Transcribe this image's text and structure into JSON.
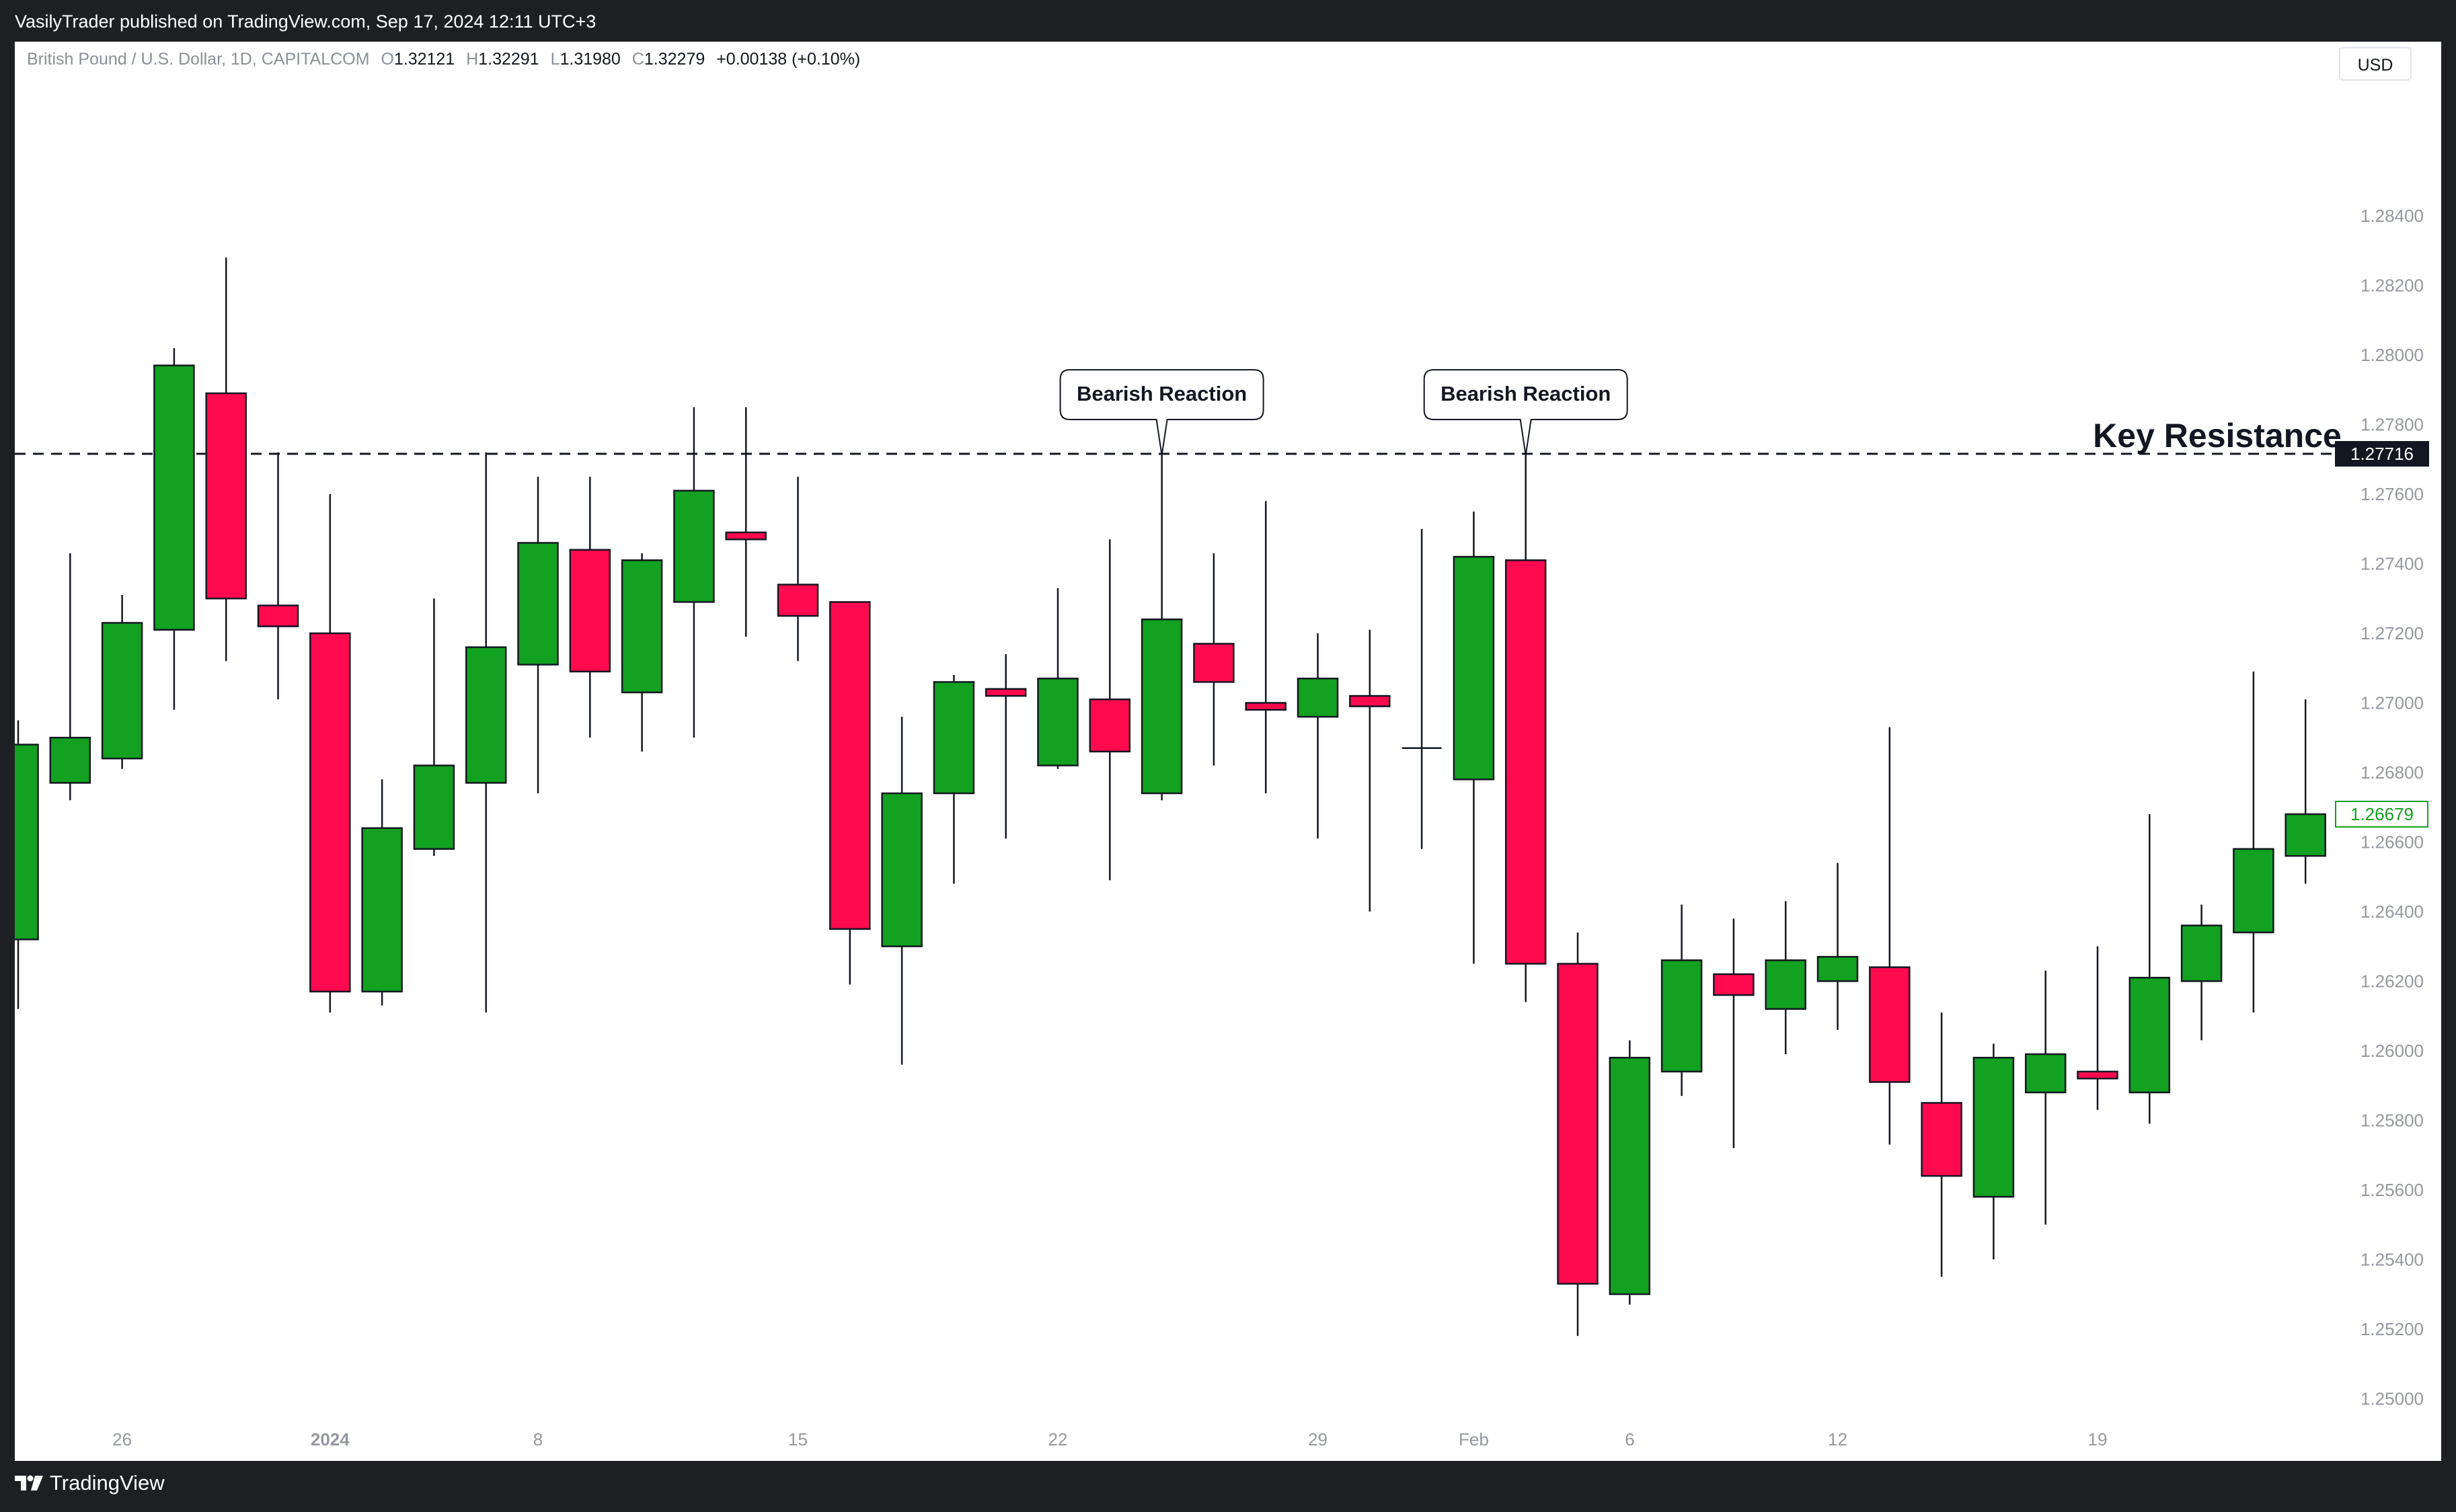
{
  "topbar": {
    "published": "VasilyTrader published on TradingView.com, Sep 17, 2024 12:11 UTC+3"
  },
  "legend": {
    "symbol": "British Pound / U.S. Dollar, 1D, CAPITALCOM",
    "o_label": "O",
    "o": "1.32121",
    "h_label": "H",
    "h": "1.32291",
    "l_label": "L",
    "l": "1.31980",
    "c_label": "C",
    "c": "1.32279",
    "change": "+0.00138 (+0.10%)"
  },
  "currency_button": "USD",
  "footer": {
    "brand": "TradingView"
  },
  "colors": {
    "up": "#12a120",
    "down": "#ff0a4f",
    "background": "#ffffff",
    "frame": "#1e1f23"
  },
  "chart_data": {
    "type": "candlestick",
    "y_range": [
      1.249,
      1.2875
    ],
    "y_ticks": [
      "1.28400",
      "1.28200",
      "1.28000",
      "1.27800",
      "1.27600",
      "1.27400",
      "1.27200",
      "1.27000",
      "1.26800",
      "1.26600",
      "1.26400",
      "1.26200",
      "1.26000",
      "1.25800",
      "1.25600",
      "1.25400",
      "1.25200",
      "1.25000"
    ],
    "x_ticks": [
      {
        "label": "26",
        "index": 2
      },
      {
        "label": "2024",
        "index": 6,
        "bold": true
      },
      {
        "label": "8",
        "index": 10
      },
      {
        "label": "15",
        "index": 15
      },
      {
        "label": "22",
        "index": 20
      },
      {
        "label": "29",
        "index": 25
      },
      {
        "label": "Feb",
        "index": 28
      },
      {
        "label": "6",
        "index": 31
      },
      {
        "label": "12",
        "index": 35
      },
      {
        "label": "19",
        "index": 40
      }
    ],
    "candles": [
      {
        "o": 1.2632,
        "h": 1.2695,
        "l": 1.2612,
        "c": 1.2688
      },
      {
        "o": 1.2677,
        "h": 1.2743,
        "l": 1.2672,
        "c": 1.269
      },
      {
        "o": 1.2684,
        "h": 1.2731,
        "l": 1.2681,
        "c": 1.2723
      },
      {
        "o": 1.2721,
        "h": 1.2802,
        "l": 1.2698,
        "c": 1.2797
      },
      {
        "o": 1.2789,
        "h": 1.2828,
        "l": 1.2712,
        "c": 1.273
      },
      {
        "o": 1.2728,
        "h": 1.2772,
        "l": 1.2701,
        "c": 1.2722
      },
      {
        "o": 1.272,
        "h": 1.276,
        "l": 1.2611,
        "c": 1.2617
      },
      {
        "o": 1.2617,
        "h": 1.2678,
        "l": 1.2613,
        "c": 1.2664
      },
      {
        "o": 1.2658,
        "h": 1.273,
        "l": 1.2656,
        "c": 1.2682
      },
      {
        "o": 1.2677,
        "h": 1.2772,
        "l": 1.2611,
        "c": 1.2716
      },
      {
        "o": 1.2711,
        "h": 1.2765,
        "l": 1.2674,
        "c": 1.2746
      },
      {
        "o": 1.2744,
        "h": 1.2765,
        "l": 1.269,
        "c": 1.2709
      },
      {
        "o": 1.2703,
        "h": 1.2743,
        "l": 1.2686,
        "c": 1.2741
      },
      {
        "o": 1.2729,
        "h": 1.2785,
        "l": 1.269,
        "c": 1.2761
      },
      {
        "o": 1.2749,
        "h": 1.2785,
        "l": 1.2719,
        "c": 1.2747
      },
      {
        "o": 1.2734,
        "h": 1.2765,
        "l": 1.2712,
        "c": 1.2725
      },
      {
        "o": 1.2729,
        "h": 1.2729,
        "l": 1.2619,
        "c": 1.2635
      },
      {
        "o": 1.263,
        "h": 1.2696,
        "l": 1.2596,
        "c": 1.2674
      },
      {
        "o": 1.2674,
        "h": 1.2708,
        "l": 1.2648,
        "c": 1.2706
      },
      {
        "o": 1.2704,
        "h": 1.2714,
        "l": 1.2661,
        "c": 1.2702
      },
      {
        "o": 1.2682,
        "h": 1.2733,
        "l": 1.2681,
        "c": 1.2707
      },
      {
        "o": 1.2701,
        "h": 1.2747,
        "l": 1.2649,
        "c": 1.2686
      },
      {
        "o": 1.2674,
        "h": 1.27716,
        "l": 1.2672,
        "c": 1.2724
      },
      {
        "o": 1.2717,
        "h": 1.2743,
        "l": 1.2682,
        "c": 1.2706
      },
      {
        "o": 1.27,
        "h": 1.2758,
        "l": 1.2674,
        "c": 1.2698
      },
      {
        "o": 1.2696,
        "h": 1.272,
        "l": 1.2661,
        "c": 1.2707
      },
      {
        "o": 1.2702,
        "h": 1.2721,
        "l": 1.264,
        "c": 1.2699
      },
      {
        "o": 1.2687,
        "h": 1.275,
        "l": 1.2658,
        "c": 1.2687
      },
      {
        "o": 1.2678,
        "h": 1.2755,
        "l": 1.2625,
        "c": 1.2742
      },
      {
        "o": 1.2741,
        "h": 1.27716,
        "l": 1.2614,
        "c": 1.2625
      },
      {
        "o": 1.2625,
        "h": 1.2634,
        "l": 1.2518,
        "c": 1.2533
      },
      {
        "o": 1.253,
        "h": 1.2603,
        "l": 1.2527,
        "c": 1.2598
      },
      {
        "o": 1.2594,
        "h": 1.2642,
        "l": 1.2587,
        "c": 1.2626
      },
      {
        "o": 1.2622,
        "h": 1.2638,
        "l": 1.2572,
        "c": 1.2616
      },
      {
        "o": 1.2612,
        "h": 1.2643,
        "l": 1.2599,
        "c": 1.2626
      },
      {
        "o": 1.262,
        "h": 1.2654,
        "l": 1.2606,
        "c": 1.2627
      },
      {
        "o": 1.2624,
        "h": 1.2693,
        "l": 1.2573,
        "c": 1.2591
      },
      {
        "o": 1.2585,
        "h": 1.2611,
        "l": 1.2535,
        "c": 1.2564
      },
      {
        "o": 1.2558,
        "h": 1.2602,
        "l": 1.254,
        "c": 1.2598
      },
      {
        "o": 1.2588,
        "h": 1.2623,
        "l": 1.255,
        "c": 1.2599
      },
      {
        "o": 1.2594,
        "h": 1.263,
        "l": 1.2583,
        "c": 1.2592
      },
      {
        "o": 1.2588,
        "h": 1.2668,
        "l": 1.2579,
        "c": 1.2621
      },
      {
        "o": 1.262,
        "h": 1.2642,
        "l": 1.2603,
        "c": 1.2636
      },
      {
        "o": 1.2634,
        "h": 1.2709,
        "l": 1.2611,
        "c": 1.2658
      },
      {
        "o": 1.2656,
        "h": 1.2701,
        "l": 1.2648,
        "c": 1.2668
      }
    ],
    "key_level": {
      "value": 1.27716,
      "label": "Key Resistance",
      "price_label": "1.27716"
    },
    "current_price_label": "1.26679",
    "annotations": [
      {
        "text": "Bearish Reaction",
        "candle_index": 22
      },
      {
        "text": "Bearish Reaction",
        "candle_index": 29
      }
    ]
  }
}
